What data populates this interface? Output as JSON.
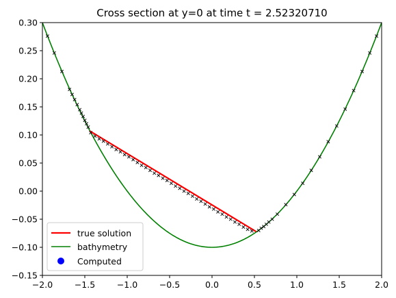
{
  "chart_data": {
    "type": "line",
    "title": "Cross section at y=0 at time t =     2.52320710",
    "xlabel": "",
    "ylabel": "",
    "xlim": [
      -2.0,
      2.0
    ],
    "ylim": [
      -0.15,
      0.3
    ],
    "xticks": [
      -2.0,
      -1.5,
      -1.0,
      -0.5,
      0.0,
      0.5,
      1.0,
      1.5,
      2.0
    ],
    "yticks": [
      -0.15,
      -0.1,
      -0.05,
      0.0,
      0.05,
      0.1,
      0.15,
      0.2,
      0.25,
      0.3
    ],
    "xtick_labels": [
      "−2.0",
      "−1.5",
      "−1.0",
      "−0.5",
      "0.0",
      "0.5",
      "1.0",
      "1.5",
      "2.0"
    ],
    "ytick_labels": [
      "−0.15",
      "−0.10",
      "−0.05",
      "0.00",
      "0.05",
      "0.10",
      "0.15",
      "0.20",
      "0.25",
      "0.30"
    ],
    "grid": false,
    "legend_position": "lower-left",
    "series": [
      {
        "name": "true solution",
        "kind": "line",
        "color": "#ff0000",
        "x": [
          -1.44,
          0.52
        ],
        "y": [
          0.107,
          -0.072
        ]
      },
      {
        "name": "bathymetry",
        "kind": "line",
        "color": "#008000",
        "function": "y = 0.1*x^2 - 0.1",
        "x_range": [
          -2.0,
          2.0
        ]
      },
      {
        "name": "Computed",
        "kind": "scatter",
        "color": "#0000ff",
        "x": [
          -1.94,
          -1.86,
          -1.77,
          -1.68,
          -1.65,
          -1.62,
          -1.59,
          -1.56,
          -1.54,
          -1.52,
          -1.5,
          -1.48,
          -1.46,
          -1.43,
          -1.38,
          -1.33,
          -1.28,
          -1.23,
          -1.18,
          -1.13,
          -1.08,
          -1.03,
          -0.98,
          -0.93,
          -0.88,
          -0.83,
          -0.78,
          -0.73,
          -0.68,
          -0.63,
          -0.58,
          -0.53,
          -0.48,
          -0.43,
          -0.38,
          -0.33,
          -0.28,
          -0.23,
          -0.18,
          -0.13,
          -0.08,
          -0.03,
          0.02,
          0.07,
          0.12,
          0.17,
          0.22,
          0.27,
          0.32,
          0.37,
          0.42,
          0.47,
          0.55,
          0.58,
          0.61,
          0.64,
          0.67,
          0.71,
          0.77,
          0.87,
          0.97,
          1.07,
          1.17,
          1.27,
          1.37,
          1.47,
          1.57,
          1.67,
          1.77,
          1.86,
          1.94
        ],
        "y": [
          0.276,
          0.246,
          0.213,
          0.181,
          0.172,
          0.163,
          0.154,
          0.145,
          0.139,
          0.133,
          0.126,
          0.12,
          0.114,
          0.104,
          0.098,
          0.093,
          0.089,
          0.084,
          0.079,
          0.074,
          0.07,
          0.065,
          0.061,
          0.056,
          0.051,
          0.046,
          0.042,
          0.037,
          0.032,
          0.028,
          0.023,
          0.019,
          0.014,
          0.009,
          0.005,
          0.0,
          -0.004,
          -0.009,
          -0.014,
          -0.018,
          -0.023,
          -0.028,
          -0.032,
          -0.037,
          -0.041,
          -0.046,
          -0.05,
          -0.055,
          -0.059,
          -0.064,
          -0.068,
          -0.071,
          -0.07,
          -0.066,
          -0.063,
          -0.059,
          -0.055,
          -0.05,
          -0.041,
          -0.024,
          -0.006,
          0.014,
          0.037,
          0.061,
          0.088,
          0.116,
          0.146,
          0.179,
          0.213,
          0.246,
          0.276
        ]
      }
    ]
  }
}
